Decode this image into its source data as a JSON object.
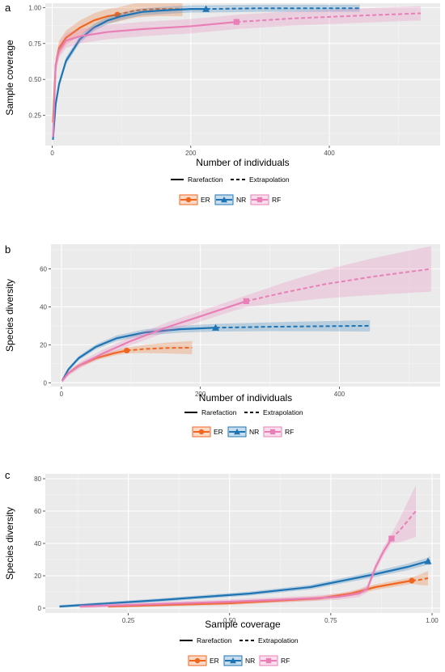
{
  "legend": {
    "rarefaction_label": "Rarefaction",
    "extrapolation_label": "Extrapolation"
  },
  "colors": {
    "ER": "#f0661f",
    "NR": "#1f74b4",
    "RF": "#e97fb7"
  },
  "chart_data": [
    {
      "tag": "a",
      "type": "line",
      "xlabel": "Number of individuals",
      "ylabel": "Sample coverage",
      "xlim": [
        -10,
        560
      ],
      "ylim": [
        0.04,
        1.03
      ],
      "xticks": [
        0,
        200,
        400
      ],
      "yticks": [
        0.25,
        0.5,
        0.75,
        1.0
      ],
      "ytick_labels": [
        "0.25",
        "0.50",
        "0.75",
        "1.00"
      ],
      "grid": true,
      "series": [
        {
          "name": "ER",
          "marker": "circle",
          "interp": [
            [
              1,
              0.2
            ],
            [
              5,
              0.6
            ],
            [
              10,
              0.72
            ],
            [
              20,
              0.79
            ],
            [
              40,
              0.86
            ],
            [
              60,
              0.91
            ],
            [
              80,
              0.94
            ],
            [
              94,
              0.95
            ]
          ],
          "extrap": [
            [
              94,
              0.95
            ],
            [
              120,
              0.98
            ],
            [
              150,
              0.99
            ],
            [
              188,
              0.99
            ]
          ],
          "ci": 0.05,
          "observed": [
            94,
            0.95
          ]
        },
        {
          "name": "NR",
          "marker": "triangle",
          "interp": [
            [
              1,
              0.08
            ],
            [
              5,
              0.33
            ],
            [
              10,
              0.47
            ],
            [
              20,
              0.63
            ],
            [
              40,
              0.78
            ],
            [
              60,
              0.86
            ],
            [
              80,
              0.91
            ],
            [
              100,
              0.94
            ],
            [
              130,
              0.97
            ],
            [
              160,
              0.98
            ],
            [
              200,
              0.99
            ],
            [
              222,
              0.99
            ]
          ],
          "extrap": [
            [
              222,
              0.99
            ],
            [
              300,
              0.995
            ],
            [
              444,
              0.995
            ]
          ],
          "ci": 0.025,
          "observed": [
            222,
            0.99
          ]
        },
        {
          "name": "RF",
          "marker": "square",
          "interp": [
            [
              1,
              0.1
            ],
            [
              5,
              0.6
            ],
            [
              10,
              0.7
            ],
            [
              20,
              0.77
            ],
            [
              40,
              0.8
            ],
            [
              80,
              0.83
            ],
            [
              130,
              0.85
            ],
            [
              200,
              0.87
            ],
            [
              266,
              0.9
            ]
          ],
          "extrap": [
            [
              266,
              0.9
            ],
            [
              350,
              0.925
            ],
            [
              450,
              0.945
            ],
            [
              532,
              0.96
            ]
          ],
          "ci": 0.05,
          "observed": [
            266,
            0.9
          ]
        }
      ]
    },
    {
      "tag": "b",
      "type": "line",
      "xlabel": "Number of individuals",
      "ylabel": "Species diversity",
      "xlim": [
        -15,
        545
      ],
      "ylim": [
        -2,
        73
      ],
      "xticks": [
        0,
        200,
        400
      ],
      "yticks": [
        0,
        20,
        40,
        60
      ],
      "ytick_labels": [
        "0",
        "20",
        "40",
        "60"
      ],
      "grid": true,
      "series": [
        {
          "name": "ER",
          "marker": "circle",
          "interp": [
            [
              1,
              1
            ],
            [
              10,
              5
            ],
            [
              25,
              9
            ],
            [
              50,
              13
            ],
            [
              75,
              15.5
            ],
            [
              94,
              17
            ]
          ],
          "extrap": [
            [
              94,
              17
            ],
            [
              120,
              17.8
            ],
            [
              150,
              18.3
            ],
            [
              188,
              18.5
            ]
          ],
          "ci_interp": 1.5,
          "ci_extrap": 3.5,
          "observed": [
            94,
            17
          ]
        },
        {
          "name": "NR",
          "marker": "triangle",
          "interp": [
            [
              1,
              1
            ],
            [
              10,
              7
            ],
            [
              25,
              13
            ],
            [
              50,
              19
            ],
            [
              80,
              23.5
            ],
            [
              120,
              26.5
            ],
            [
              170,
              28.2
            ],
            [
              222,
              29
            ]
          ],
          "extrap": [
            [
              222,
              29
            ],
            [
              300,
              29.5
            ],
            [
              380,
              29.8
            ],
            [
              444,
              30
            ]
          ],
          "ci_interp": 2,
          "ci_extrap": 3,
          "observed": [
            222,
            29
          ]
        },
        {
          "name": "RF",
          "marker": "square",
          "interp": [
            [
              1,
              1
            ],
            [
              10,
              5
            ],
            [
              30,
              10
            ],
            [
              60,
              15.5
            ],
            [
              100,
              22
            ],
            [
              150,
              29
            ],
            [
              200,
              35
            ],
            [
              266,
              43
            ]
          ],
          "extrap": [
            [
              266,
              43
            ],
            [
              320,
              47.5
            ],
            [
              380,
              52
            ],
            [
              450,
              56
            ],
            [
              532,
              60
            ]
          ],
          "ci_interp": 3,
          "ci_extrap": 12,
          "observed": [
            266,
            43
          ]
        }
      ]
    },
    {
      "tag": "c",
      "type": "line",
      "xlabel": "Sample coverage",
      "ylabel": "Species diversity",
      "xlim": [
        0.045,
        1.02
      ],
      "ylim": [
        -3,
        83
      ],
      "xticks": [
        0.25,
        0.5,
        0.75,
        1.0
      ],
      "xtick_labels": [
        "0.25",
        "0.50",
        "0.75",
        "1.00"
      ],
      "yticks": [
        0,
        20,
        40,
        60,
        80
      ],
      "ytick_labels": [
        "0",
        "20",
        "40",
        "60",
        "80"
      ],
      "grid": true,
      "series": [
        {
          "name": "ER",
          "marker": "circle",
          "interp": [
            [
              0.2,
              1
            ],
            [
              0.5,
              3
            ],
            [
              0.72,
              6
            ],
            [
              0.8,
              9
            ],
            [
              0.86,
              13
            ],
            [
              0.95,
              17
            ]
          ],
          "extrap": [
            [
              0.95,
              17
            ],
            [
              0.97,
              17.5
            ],
            [
              0.99,
              18.5
            ]
          ],
          "ci_interp": 2,
          "ci_extrap": 4.5,
          "observed": [
            0.95,
            17
          ]
        },
        {
          "name": "NR",
          "marker": "triangle",
          "interp": [
            [
              0.08,
              1
            ],
            [
              0.33,
              5
            ],
            [
              0.55,
              9
            ],
            [
              0.7,
              13
            ],
            [
              0.78,
              17
            ],
            [
              0.86,
              21
            ],
            [
              0.94,
              25.5
            ],
            [
              0.99,
              29
            ]
          ],
          "extrap": [
            [
              0.99,
              29
            ],
            [
              0.995,
              29.5
            ]
          ],
          "ci_interp": 2.2,
          "ci_extrap": 3,
          "observed": [
            0.99,
            29
          ]
        },
        {
          "name": "RF",
          "marker": "square",
          "interp": [
            [
              0.13,
              1
            ],
            [
              0.5,
              4
            ],
            [
              0.7,
              6
            ],
            [
              0.77,
              7
            ],
            [
              0.82,
              9
            ],
            [
              0.84,
              12
            ],
            [
              0.86,
              25
            ],
            [
              0.88,
              35
            ],
            [
              0.9,
              43
            ]
          ],
          "extrap": [
            [
              0.9,
              43
            ],
            [
              0.92,
              48
            ],
            [
              0.94,
              54
            ],
            [
              0.96,
              60
            ]
          ],
          "ci_interp": 3,
          "ci_extrap": 16,
          "observed": [
            0.9,
            43
          ]
        }
      ]
    }
  ]
}
